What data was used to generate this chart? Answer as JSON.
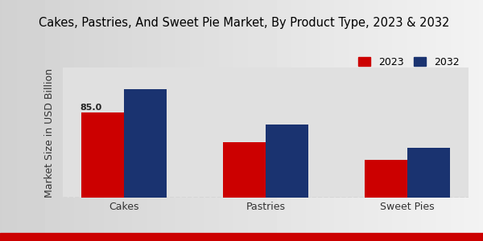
{
  "title": "Cakes, Pastries, And Sweet Pie Market, By Product Type, 2023 & 2032",
  "ylabel": "Market Size in USD Billion",
  "categories": [
    "Cakes",
    "Pastries",
    "Sweet Pies"
  ],
  "values_2023": [
    85.0,
    55.0,
    38.0
  ],
  "values_2032": [
    108.0,
    73.0,
    50.0
  ],
  "color_2023": "#cc0000",
  "color_2032": "#1a3370",
  "legend_labels": [
    "2023",
    "2032"
  ],
  "bar_label_value": "85.0",
  "ylim": [
    0,
    130
  ],
  "background_color": "#e0e0e0",
  "title_fontsize": 10.5,
  "axis_fontsize": 9,
  "bar_width": 0.3,
  "bottom_bar_color": "#cc0000",
  "label_color": "#222222",
  "dashed_line_color": "#aaaaaa"
}
